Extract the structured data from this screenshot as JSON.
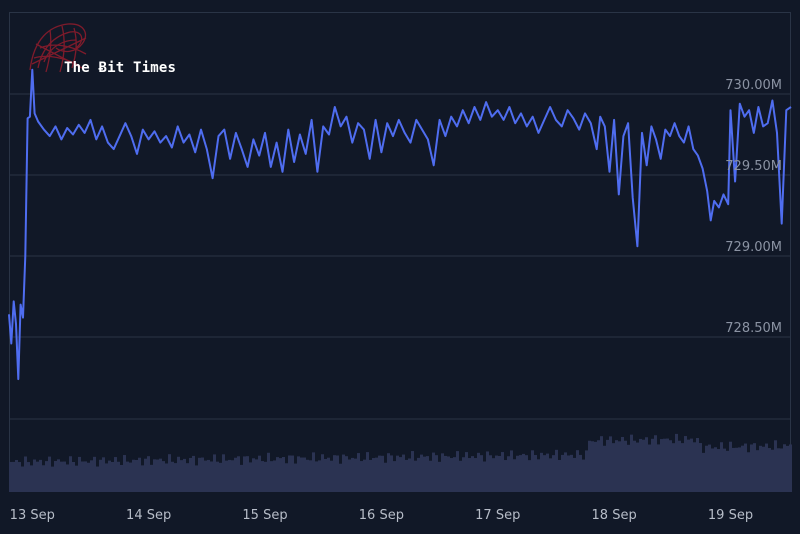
{
  "watermark": {
    "text": "The Ƀit Times"
  },
  "colors": {
    "background": "#111827",
    "line": "#4f6df0",
    "volume": "#2b3352",
    "grid": "#2a3446",
    "logo": "#8a1c2c"
  },
  "chart_data": {
    "type": "line",
    "title": "",
    "xlabel": "",
    "ylabel": "",
    "y_unit": "M",
    "ylim": [
      728.0,
      730.2
    ],
    "yticks": [
      728.5,
      729.0,
      729.5,
      730.0
    ],
    "ytick_labels": [
      "728.50M",
      "729.00M",
      "729.50M",
      "730.00M"
    ],
    "xtick_labels": [
      "13 Sep",
      "14 Sep",
      "15 Sep",
      "16 Sep",
      "17 Sep",
      "18 Sep",
      "19 Sep"
    ],
    "xlim": [
      12.8,
      19.52
    ],
    "grid": true,
    "series": [
      {
        "values": [
          [
            12.8,
            728.64
          ],
          [
            12.82,
            728.46
          ],
          [
            12.84,
            728.72
          ],
          [
            12.86,
            728.58
          ],
          [
            12.88,
            728.24
          ],
          [
            12.9,
            728.7
          ],
          [
            12.92,
            728.62
          ],
          [
            12.94,
            729.0
          ],
          [
            12.96,
            729.85
          ],
          [
            12.98,
            729.86
          ],
          [
            13.0,
            730.15
          ],
          [
            13.02,
            729.88
          ],
          [
            13.05,
            729.83
          ],
          [
            13.1,
            729.78
          ],
          [
            13.15,
            729.74
          ],
          [
            13.2,
            729.8
          ],
          [
            13.25,
            729.72
          ],
          [
            13.3,
            729.79
          ],
          [
            13.35,
            729.75
          ],
          [
            13.4,
            729.81
          ],
          [
            13.45,
            729.76
          ],
          [
            13.5,
            729.84
          ],
          [
            13.55,
            729.72
          ],
          [
            13.6,
            729.8
          ],
          [
            13.65,
            729.7
          ],
          [
            13.7,
            729.66
          ],
          [
            13.75,
            729.74
          ],
          [
            13.8,
            729.82
          ],
          [
            13.85,
            729.74
          ],
          [
            13.9,
            729.63
          ],
          [
            13.95,
            729.78
          ],
          [
            14.0,
            729.72
          ],
          [
            14.05,
            729.77
          ],
          [
            14.1,
            729.7
          ],
          [
            14.15,
            729.74
          ],
          [
            14.2,
            729.67
          ],
          [
            14.25,
            729.8
          ],
          [
            14.3,
            729.7
          ],
          [
            14.35,
            729.75
          ],
          [
            14.4,
            729.64
          ],
          [
            14.45,
            729.78
          ],
          [
            14.5,
            729.66
          ],
          [
            14.55,
            729.48
          ],
          [
            14.6,
            729.74
          ],
          [
            14.65,
            729.78
          ],
          [
            14.7,
            729.6
          ],
          [
            14.75,
            729.76
          ],
          [
            14.8,
            729.66
          ],
          [
            14.85,
            729.55
          ],
          [
            14.9,
            729.72
          ],
          [
            14.95,
            729.62
          ],
          [
            15.0,
            729.76
          ],
          [
            15.05,
            729.55
          ],
          [
            15.1,
            729.7
          ],
          [
            15.15,
            729.52
          ],
          [
            15.2,
            729.78
          ],
          [
            15.25,
            729.58
          ],
          [
            15.3,
            729.75
          ],
          [
            15.35,
            729.63
          ],
          [
            15.4,
            729.84
          ],
          [
            15.45,
            729.52
          ],
          [
            15.5,
            729.8
          ],
          [
            15.55,
            729.75
          ],
          [
            15.6,
            729.92
          ],
          [
            15.65,
            729.8
          ],
          [
            15.7,
            729.86
          ],
          [
            15.75,
            729.7
          ],
          [
            15.8,
            729.82
          ],
          [
            15.85,
            729.78
          ],
          [
            15.9,
            729.6
          ],
          [
            15.95,
            729.84
          ],
          [
            16.0,
            729.64
          ],
          [
            16.05,
            729.82
          ],
          [
            16.1,
            729.74
          ],
          [
            16.15,
            729.84
          ],
          [
            16.2,
            729.76
          ],
          [
            16.25,
            729.7
          ],
          [
            16.3,
            729.84
          ],
          [
            16.35,
            729.78
          ],
          [
            16.4,
            729.72
          ],
          [
            16.45,
            729.56
          ],
          [
            16.5,
            729.84
          ],
          [
            16.55,
            729.74
          ],
          [
            16.6,
            729.86
          ],
          [
            16.65,
            729.8
          ],
          [
            16.7,
            729.9
          ],
          [
            16.75,
            729.82
          ],
          [
            16.8,
            729.92
          ],
          [
            16.85,
            729.84
          ],
          [
            16.9,
            729.95
          ],
          [
            16.95,
            729.86
          ],
          [
            17.0,
            729.9
          ],
          [
            17.05,
            729.84
          ],
          [
            17.1,
            729.92
          ],
          [
            17.15,
            729.82
          ],
          [
            17.2,
            729.88
          ],
          [
            17.25,
            729.8
          ],
          [
            17.3,
            729.86
          ],
          [
            17.35,
            729.76
          ],
          [
            17.4,
            729.84
          ],
          [
            17.45,
            729.92
          ],
          [
            17.5,
            729.84
          ],
          [
            17.55,
            729.8
          ],
          [
            17.6,
            729.9
          ],
          [
            17.65,
            729.85
          ],
          [
            17.7,
            729.78
          ],
          [
            17.75,
            729.88
          ],
          [
            17.8,
            729.82
          ],
          [
            17.85,
            729.66
          ],
          [
            17.88,
            729.86
          ],
          [
            17.92,
            729.8
          ],
          [
            17.96,
            729.52
          ],
          [
            18.0,
            729.84
          ],
          [
            18.04,
            729.38
          ],
          [
            18.08,
            729.74
          ],
          [
            18.12,
            729.82
          ],
          [
            18.16,
            729.36
          ],
          [
            18.2,
            729.06
          ],
          [
            18.24,
            729.76
          ],
          [
            18.28,
            729.56
          ],
          [
            18.32,
            729.8
          ],
          [
            18.36,
            729.72
          ],
          [
            18.4,
            729.6
          ],
          [
            18.44,
            729.78
          ],
          [
            18.48,
            729.74
          ],
          [
            18.52,
            729.82
          ],
          [
            18.56,
            729.74
          ],
          [
            18.6,
            729.7
          ],
          [
            18.64,
            729.8
          ],
          [
            18.68,
            729.66
          ],
          [
            18.72,
            729.62
          ],
          [
            18.76,
            729.54
          ],
          [
            18.8,
            729.4
          ],
          [
            18.83,
            729.22
          ],
          [
            18.86,
            729.34
          ],
          [
            18.9,
            729.3
          ],
          [
            18.94,
            729.38
          ],
          [
            18.98,
            729.32
          ],
          [
            19.0,
            729.9
          ],
          [
            19.04,
            729.46
          ],
          [
            19.08,
            729.94
          ],
          [
            19.12,
            729.86
          ],
          [
            19.16,
            729.9
          ],
          [
            19.2,
            729.76
          ],
          [
            19.24,
            729.92
          ],
          [
            19.28,
            729.8
          ],
          [
            19.32,
            729.82
          ],
          [
            19.36,
            729.96
          ],
          [
            19.4,
            729.76
          ],
          [
            19.44,
            729.2
          ],
          [
            19.48,
            729.9
          ],
          [
            19.52,
            729.92
          ]
        ]
      }
    ]
  }
}
